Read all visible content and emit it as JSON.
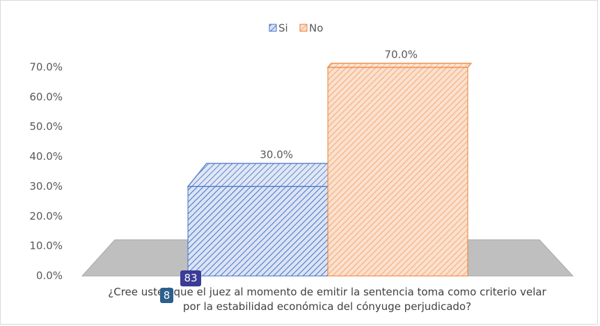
{
  "chart_data": {
    "type": "bar3d",
    "categories": [
      "¿Cree usted que el juez al momento de emitir la sentencia toma como criterio velar por la estabilidad económica del cónyuge perjudicado?"
    ],
    "series": [
      {
        "name": "Si",
        "color": "#4472c4",
        "values": [
          30
        ],
        "value_labels": [
          "30.0%"
        ]
      },
      {
        "name": "No",
        "color": "#ed7d31",
        "values": [
          70
        ],
        "value_labels": [
          "70.0%"
        ]
      }
    ],
    "ylim": [
      0,
      70
    ],
    "yticks": [
      {
        "value": 0,
        "label": "0.0%"
      },
      {
        "value": 10,
        "label": "10.0%"
      },
      {
        "value": 20,
        "label": "20.0%"
      },
      {
        "value": 30,
        "label": "30.0%"
      },
      {
        "value": 40,
        "label": "40.0%"
      },
      {
        "value": 50,
        "label": "50.0%"
      },
      {
        "value": 60,
        "label": "60.0%"
      },
      {
        "value": 70,
        "label": "70.0%"
      }
    ],
    "legend": "top",
    "annotations": [
      "83",
      "8"
    ]
  }
}
